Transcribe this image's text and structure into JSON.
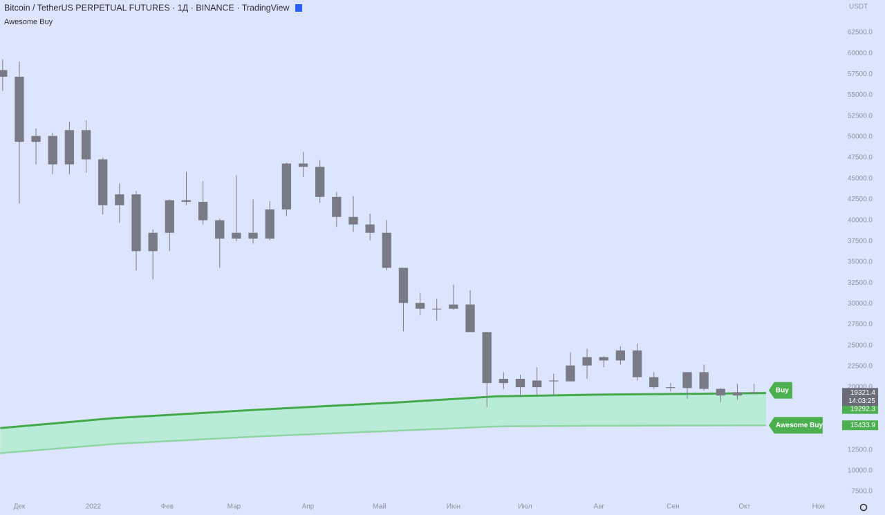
{
  "chart_data": {
    "type": "candlestick",
    "title": "Bitcoin / TetherUS PERPETUAL FUTURES · 1Д · BINANCE · TradingView",
    "indicator": "Awesome Buy",
    "currency": "USDT",
    "countdown": "14:03:25",
    "color": "#787b86",
    "fill_color": "#b9ecd6",
    "x": [
      -7,
      0,
      7,
      14,
      21,
      28,
      35,
      42,
      49,
      56,
      63,
      70,
      77,
      84,
      91,
      98,
      105,
      112,
      119,
      126,
      133,
      140,
      147,
      154,
      161,
      168,
      175,
      182,
      189,
      196,
      203,
      210,
      217,
      224,
      231,
      238,
      245,
      252,
      259,
      266,
      273,
      280,
      287,
      294,
      301,
      308
    ],
    "open": [
      58000,
      57200,
      49400,
      50100,
      46700,
      50800,
      47300,
      41800,
      43100,
      36300,
      38500,
      42400,
      42200,
      40000,
      37800,
      38500,
      37800,
      41300,
      46800,
      46400,
      42800,
      40400,
      39500,
      38500,
      34300,
      30100,
      29400,
      29400,
      29900,
      26600,
      20500,
      21000,
      20000,
      20800,
      20700,
      22600,
      23600,
      23200,
      24400,
      21200,
      20000,
      19900,
      21800,
      19800,
      19000,
      19400
    ],
    "high": [
      59300,
      59000,
      51000,
      50500,
      51800,
      52000,
      47500,
      44400,
      43500,
      38900,
      42500,
      45800,
      44700,
      40200,
      45400,
      42500,
      42300,
      46900,
      48200,
      47200,
      43400,
      42900,
      40800,
      40000,
      34300,
      31300,
      30600,
      32300,
      31600,
      26600,
      21800,
      21500,
      22400,
      21600,
      24200,
      24600,
      23700,
      24900,
      25200,
      21800,
      20500,
      21800,
      22700,
      19900,
      20400,
      20400
    ],
    "low": [
      55500,
      42000,
      46700,
      45500,
      45500,
      45700,
      40700,
      39700,
      34000,
      32900,
      36300,
      41800,
      39500,
      34300,
      37500,
      37200,
      37600,
      40500,
      45200,
      42100,
      39200,
      38600,
      37600,
      34000,
      26700,
      28600,
      28000,
      29300,
      26600,
      17600,
      19800,
      18800,
      19000,
      18900,
      20700,
      21000,
      22400,
      22700,
      20800,
      19800,
      19500,
      18600,
      19600,
      18200,
      18500,
      19200
    ],
    "close": [
      57200,
      49400,
      50100,
      46700,
      50800,
      47300,
      41800,
      43100,
      36300,
      38500,
      42400,
      42200,
      40000,
      37800,
      38500,
      37800,
      41300,
      46800,
      46400,
      42800,
      40400,
      39500,
      38500,
      34300,
      30100,
      29400,
      29400,
      29900,
      26600,
      20500,
      21000,
      20000,
      20800,
      20700,
      22600,
      23600,
      23200,
      24400,
      21200,
      20000,
      19900,
      21800,
      19800,
      19000,
      19400,
      19321.4
    ],
    "lines": [
      {
        "name": "Buy",
        "color": "#43a84a",
        "x": [
          -8,
          40,
          100,
          160,
          200,
          240,
          280,
          313
        ],
        "values": [
          15100,
          16300,
          17300,
          18200,
          18900,
          19100,
          19200,
          19292.3
        ]
      },
      {
        "name": "Awesome Buy",
        "color": "#8fd4a4",
        "x": [
          -8,
          40,
          100,
          160,
          200,
          240,
          280,
          313
        ],
        "values": [
          12100,
          13200,
          14100,
          14800,
          15300,
          15380,
          15410,
          15433.9
        ]
      }
    ],
    "xlim": [
      -8.1,
      342.6
    ],
    "ylim": [
      6589,
      66393
    ],
    "xticks": [
      {
        "value": 0,
        "label": "Дек"
      },
      {
        "value": 31,
        "label": "2022"
      },
      {
        "value": 62,
        "label": "Фев"
      },
      {
        "value": 90,
        "label": "Мар"
      },
      {
        "value": 121,
        "label": "Апр"
      },
      {
        "value": 151,
        "label": "Май"
      },
      {
        "value": 182,
        "label": "Июн"
      },
      {
        "value": 212,
        "label": "Июл"
      },
      {
        "value": 243,
        "label": "Авг"
      },
      {
        "value": 274,
        "label": "Сен"
      },
      {
        "value": 304,
        "label": "Окт"
      },
      {
        "value": 335,
        "label": "Ноя"
      }
    ],
    "yticks": [
      {
        "value": 7500,
        "label": "7500.0"
      },
      {
        "value": 10000,
        "label": "10000.0"
      },
      {
        "value": 12500,
        "label": "12500.0"
      },
      {
        "value": 20000,
        "label": "20000.0"
      },
      {
        "value": 22500,
        "label": "22500.0"
      },
      {
        "value": 25000,
        "label": "25000.0"
      },
      {
        "value": 27500,
        "label": "27500.0"
      },
      {
        "value": 30000,
        "label": "30000.0"
      },
      {
        "value": 32500,
        "label": "32500.0"
      },
      {
        "value": 35000,
        "label": "35000.0"
      },
      {
        "value": 37500,
        "label": "37500.0"
      },
      {
        "value": 40000,
        "label": "40000.0"
      },
      {
        "value": 42500,
        "label": "42500.0"
      },
      {
        "value": 45000,
        "label": "45000.0"
      },
      {
        "value": 47500,
        "label": "47500.0"
      },
      {
        "value": 50000,
        "label": "50000.0"
      },
      {
        "value": 52500,
        "label": "52500.0"
      },
      {
        "value": 55000,
        "label": "55000.0"
      },
      {
        "value": 57500,
        "label": "57500.0"
      },
      {
        "value": 60000,
        "label": "60000.0"
      },
      {
        "value": 62500,
        "label": "62500.0"
      }
    ]
  }
}
